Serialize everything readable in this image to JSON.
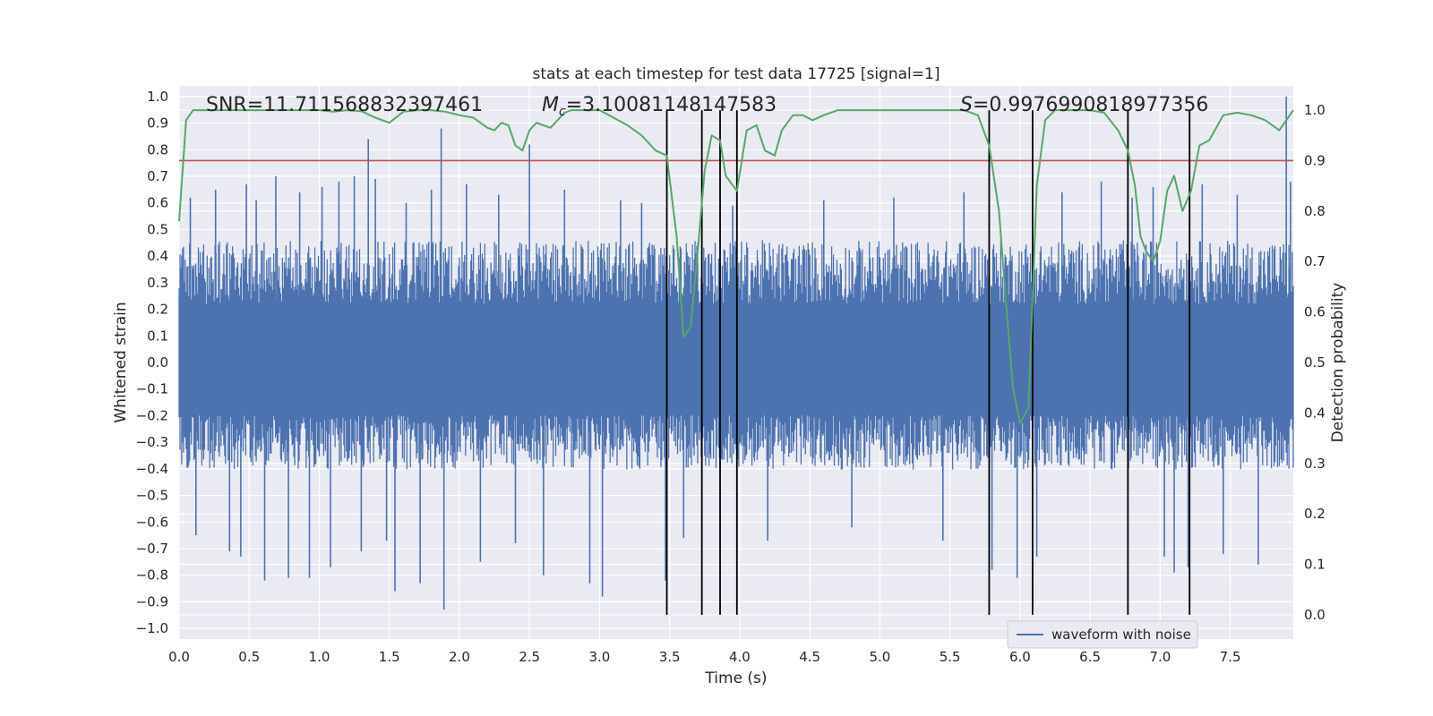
{
  "chart_data": {
    "type": "line",
    "title": "stats at each timestep for test data 17725 [signal=1]",
    "xlabel": "Time (s)",
    "ylabel": "Whitened strain",
    "y2label": "Detection probability",
    "xlim": [
      0.0,
      7.95
    ],
    "ylim": [
      -1.04,
      1.04
    ],
    "y2lim": [
      -0.048,
      1.048
    ],
    "xticks": [
      "0.0",
      "0.5",
      "1.0",
      "1.5",
      "2.0",
      "2.5",
      "3.0",
      "3.5",
      "4.0",
      "4.5",
      "5.0",
      "5.5",
      "6.0",
      "6.5",
      "7.0",
      "7.5"
    ],
    "yticks": [
      "1.0",
      "0.9",
      "0.8",
      "0.7",
      "0.6",
      "0.5",
      "0.4",
      "0.3",
      "0.2",
      "0.1",
      "0.0",
      "−0.1",
      "−0.2",
      "−0.3",
      "−0.4",
      "−0.5",
      "−0.6",
      "−0.7",
      "−0.8",
      "−0.9",
      "−1.0"
    ],
    "y2ticks": [
      "1.0",
      "0.9",
      "0.8",
      "0.7",
      "0.6",
      "0.5",
      "0.4",
      "0.3",
      "0.2",
      "0.1",
      "0.0"
    ],
    "grid": true,
    "legend": {
      "placement": "lower-right",
      "entries": [
        "waveform with noise"
      ]
    },
    "annotations": {
      "snr": "SNR=11.711568832397461",
      "mc_symbol": "M",
      "mc_sub": "c",
      "mc_value": "=3.10081148147583",
      "s_symbol": "S",
      "s_value": "=0.9976990818977356"
    },
    "threshold": {
      "axis": "y2",
      "value": 0.9,
      "color": "#c44e52"
    },
    "trigger_times": [
      3.48,
      3.73,
      3.86,
      3.98,
      5.78,
      6.09,
      6.77,
      7.21
    ],
    "series": [
      {
        "name": "waveform with noise",
        "axis": "y",
        "color": "#4c72b0",
        "note": "noise envelope band sampled at 160 Hz, with visible spikes",
        "base_upper": 0.4,
        "base_lower": -0.35,
        "spikes": [
          {
            "x": 0.08,
            "y": 0.62
          },
          {
            "x": 0.12,
            "y": -0.65
          },
          {
            "x": 0.26,
            "y": 0.65
          },
          {
            "x": 0.36,
            "y": -0.71
          },
          {
            "x": 0.44,
            "y": -0.73
          },
          {
            "x": 0.48,
            "y": 0.67
          },
          {
            "x": 0.55,
            "y": 0.61
          },
          {
            "x": 0.61,
            "y": -0.82
          },
          {
            "x": 0.69,
            "y": 0.7
          },
          {
            "x": 0.78,
            "y": -0.81
          },
          {
            "x": 0.86,
            "y": 0.64
          },
          {
            "x": 0.93,
            "y": -0.81
          },
          {
            "x": 1.02,
            "y": 0.66
          },
          {
            "x": 1.08,
            "y": -0.77
          },
          {
            "x": 1.14,
            "y": 0.68
          },
          {
            "x": 1.25,
            "y": 0.7
          },
          {
            "x": 1.3,
            "y": -0.71
          },
          {
            "x": 1.35,
            "y": 0.84
          },
          {
            "x": 1.4,
            "y": 0.69
          },
          {
            "x": 1.48,
            "y": -0.67
          },
          {
            "x": 1.54,
            "y": -0.86
          },
          {
            "x": 1.62,
            "y": 0.6
          },
          {
            "x": 1.72,
            "y": -0.83
          },
          {
            "x": 1.8,
            "y": 0.65
          },
          {
            "x": 1.87,
            "y": 0.88
          },
          {
            "x": 1.89,
            "y": -0.93
          },
          {
            "x": 2.05,
            "y": 0.67
          },
          {
            "x": 2.15,
            "y": -0.75
          },
          {
            "x": 2.28,
            "y": 0.63
          },
          {
            "x": 2.4,
            "y": -0.68
          },
          {
            "x": 2.5,
            "y": 0.82
          },
          {
            "x": 2.6,
            "y": -0.8
          },
          {
            "x": 2.75,
            "y": 0.65
          },
          {
            "x": 2.93,
            "y": -0.83
          },
          {
            "x": 3.02,
            "y": -0.88
          },
          {
            "x": 3.15,
            "y": 0.61
          },
          {
            "x": 3.3,
            "y": 0.6
          },
          {
            "x": 3.47,
            "y": -0.82
          },
          {
            "x": 3.6,
            "y": -0.66
          },
          {
            "x": 3.95,
            "y": 0.59
          },
          {
            "x": 3.98,
            "y": -0.72
          },
          {
            "x": 4.2,
            "y": -0.67
          },
          {
            "x": 4.6,
            "y": 0.61
          },
          {
            "x": 4.8,
            "y": -0.62
          },
          {
            "x": 5.1,
            "y": 0.62
          },
          {
            "x": 5.45,
            "y": -0.67
          },
          {
            "x": 5.6,
            "y": 0.64
          },
          {
            "x": 5.8,
            "y": -0.78
          },
          {
            "x": 5.98,
            "y": -0.81
          },
          {
            "x": 6.12,
            "y": -0.73
          },
          {
            "x": 6.3,
            "y": 0.64
          },
          {
            "x": 6.58,
            "y": 0.68
          },
          {
            "x": 6.8,
            "y": 0.62
          },
          {
            "x": 6.95,
            "y": 0.66
          },
          {
            "x": 7.03,
            "y": -0.73
          },
          {
            "x": 7.1,
            "y": -0.79
          },
          {
            "x": 7.2,
            "y": -0.77
          },
          {
            "x": 7.3,
            "y": 0.67
          },
          {
            "x": 7.45,
            "y": -0.72
          },
          {
            "x": 7.55,
            "y": 0.63
          },
          {
            "x": 7.7,
            "y": -0.76
          },
          {
            "x": 7.9,
            "y": 1.0
          },
          {
            "x": 7.93,
            "y": 0.68
          }
        ]
      },
      {
        "name": "detection probability",
        "axis": "y2",
        "color": "#55a868",
        "x": [
          0.0,
          0.05,
          0.1,
          0.2,
          0.3,
          0.4,
          0.5,
          0.6,
          0.7,
          0.8,
          0.9,
          1.0,
          1.1,
          1.2,
          1.3,
          1.4,
          1.5,
          1.6,
          1.7,
          1.8,
          1.9,
          2.0,
          2.1,
          2.2,
          2.25,
          2.3,
          2.35,
          2.4,
          2.45,
          2.5,
          2.55,
          2.6,
          2.65,
          2.75,
          2.8,
          2.85,
          2.9,
          3.0,
          3.1,
          3.2,
          3.3,
          3.4,
          3.48,
          3.55,
          3.6,
          3.65,
          3.7,
          3.75,
          3.8,
          3.86,
          3.9,
          3.98,
          4.05,
          4.12,
          4.18,
          4.25,
          4.3,
          4.38,
          4.45,
          4.52,
          4.6,
          4.7,
          4.8,
          4.9,
          5.0,
          5.1,
          5.2,
          5.3,
          5.4,
          5.5,
          5.6,
          5.7,
          5.78,
          5.85,
          5.9,
          5.95,
          6.0,
          6.06,
          6.12,
          6.18,
          6.25,
          6.3,
          6.4,
          6.5,
          6.6,
          6.7,
          6.77,
          6.82,
          6.86,
          6.9,
          6.95,
          7.0,
          7.05,
          7.1,
          7.16,
          7.22,
          7.28,
          7.35,
          7.45,
          7.55,
          7.65,
          7.75,
          7.85,
          7.95
        ],
        "y": [
          0.78,
          0.98,
          1.0,
          1.0,
          1.0,
          1.0,
          1.0,
          1.0,
          1.0,
          1.0,
          1.0,
          1.0,
          0.997,
          1.0,
          0.998,
          0.985,
          0.975,
          0.997,
          1.0,
          1.0,
          0.997,
          0.99,
          0.985,
          0.965,
          0.96,
          0.975,
          0.97,
          0.93,
          0.92,
          0.96,
          0.975,
          0.97,
          0.965,
          0.995,
          1.0,
          1.0,
          1.0,
          1.0,
          0.985,
          0.97,
          0.95,
          0.92,
          0.91,
          0.75,
          0.55,
          0.57,
          0.72,
          0.88,
          0.95,
          0.94,
          0.87,
          0.84,
          0.96,
          0.97,
          0.92,
          0.91,
          0.96,
          0.99,
          0.99,
          0.98,
          0.99,
          1.0,
          1.0,
          1.0,
          1.0,
          1.0,
          1.0,
          1.0,
          1.0,
          1.0,
          1.0,
          0.99,
          0.93,
          0.8,
          0.62,
          0.45,
          0.38,
          0.41,
          0.85,
          0.98,
          1.0,
          1.0,
          1.0,
          1.0,
          0.995,
          0.96,
          0.92,
          0.85,
          0.75,
          0.72,
          0.7,
          0.74,
          0.84,
          0.87,
          0.8,
          0.84,
          0.93,
          0.94,
          0.99,
          0.995,
          0.99,
          0.98,
          0.96,
          1.0
        ]
      }
    ]
  }
}
